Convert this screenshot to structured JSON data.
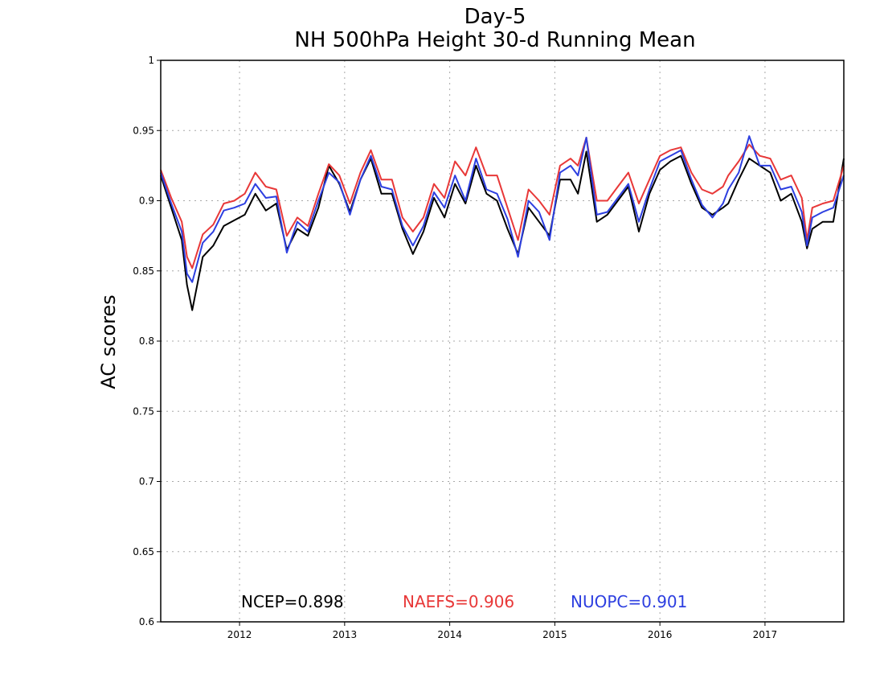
{
  "chart_data": {
    "type": "line",
    "title": "Day-5",
    "subtitle": "NH 500hPa Height 30-d Running Mean",
    "xlabel": "",
    "ylabel": "AC scores",
    "xlim": [
      2011.25,
      2017.75
    ],
    "ylim": [
      0.6,
      1.0
    ],
    "x_ticks": [
      2012,
      2013,
      2014,
      2015,
      2016,
      2017
    ],
    "x_tick_labels": [
      "2012",
      "2013",
      "2014",
      "2015",
      "2016",
      "2017"
    ],
    "y_ticks": [
      0.6,
      0.65,
      0.7,
      0.75,
      0.8,
      0.85,
      0.9,
      0.95,
      1.0
    ],
    "y_tick_labels": [
      "0.6",
      "0.65",
      "0.7",
      "0.75",
      "0.8",
      "0.85",
      "0.9",
      "0.95",
      "1"
    ],
    "grid": true,
    "legend_placement": "bottom",
    "x": [
      2011.25,
      2011.35,
      2011.45,
      2011.5,
      2011.55,
      2011.65,
      2011.75,
      2011.85,
      2011.95,
      2012.05,
      2012.15,
      2012.25,
      2012.35,
      2012.45,
      2012.55,
      2012.65,
      2012.75,
      2012.85,
      2012.95,
      2013.05,
      2013.15,
      2013.25,
      2013.35,
      2013.45,
      2013.55,
      2013.65,
      2013.75,
      2013.85,
      2013.95,
      2014.05,
      2014.15,
      2014.25,
      2014.35,
      2014.45,
      2014.55,
      2014.65,
      2014.75,
      2014.85,
      2014.95,
      2015.05,
      2015.15,
      2015.22,
      2015.3,
      2015.4,
      2015.5,
      2015.6,
      2015.7,
      2015.8,
      2015.9,
      2016.0,
      2016.1,
      2016.2,
      2016.3,
      2016.4,
      2016.5,
      2016.6,
      2016.65,
      2016.75,
      2016.85,
      2016.95,
      2017.05,
      2017.15,
      2017.25,
      2017.35,
      2017.4,
      2017.45,
      2017.55,
      2017.65,
      2017.75
    ],
    "series": [
      {
        "name": "NCEP",
        "color": "#000000",
        "values": [
          0.918,
          0.895,
          0.872,
          0.84,
          0.822,
          0.86,
          0.868,
          0.882,
          0.886,
          0.89,
          0.905,
          0.893,
          0.898,
          0.865,
          0.88,
          0.875,
          0.895,
          0.925,
          0.912,
          0.892,
          0.915,
          0.93,
          0.905,
          0.905,
          0.88,
          0.862,
          0.878,
          0.902,
          0.888,
          0.912,
          0.898,
          0.925,
          0.905,
          0.9,
          0.88,
          0.862,
          0.895,
          0.885,
          0.875,
          0.915,
          0.915,
          0.905,
          0.935,
          0.885,
          0.89,
          0.9,
          0.91,
          0.878,
          0.905,
          0.922,
          0.928,
          0.932,
          0.912,
          0.895,
          0.89,
          0.895,
          0.898,
          0.915,
          0.93,
          0.925,
          0.92,
          0.9,
          0.905,
          0.885,
          0.866,
          0.88,
          0.885,
          0.885,
          0.93
        ]
      },
      {
        "name": "NAEFS",
        "color": "#e83838",
        "values": [
          0.922,
          0.902,
          0.885,
          0.86,
          0.852,
          0.876,
          0.883,
          0.898,
          0.9,
          0.905,
          0.92,
          0.91,
          0.908,
          0.875,
          0.888,
          0.882,
          0.905,
          0.926,
          0.918,
          0.898,
          0.92,
          0.936,
          0.915,
          0.915,
          0.888,
          0.878,
          0.888,
          0.912,
          0.902,
          0.928,
          0.918,
          0.938,
          0.918,
          0.918,
          0.895,
          0.872,
          0.908,
          0.9,
          0.89,
          0.925,
          0.93,
          0.925,
          0.945,
          0.9,
          0.9,
          0.91,
          0.92,
          0.898,
          0.915,
          0.932,
          0.936,
          0.938,
          0.92,
          0.908,
          0.905,
          0.91,
          0.918,
          0.928,
          0.94,
          0.932,
          0.93,
          0.915,
          0.918,
          0.902,
          0.872,
          0.895,
          0.898,
          0.9,
          0.925
        ]
      },
      {
        "name": "NUOPC",
        "color": "#2d3fe0",
        "values": [
          0.92,
          0.898,
          0.878,
          0.848,
          0.842,
          0.87,
          0.878,
          0.893,
          0.895,
          0.898,
          0.912,
          0.902,
          0.903,
          0.863,
          0.885,
          0.878,
          0.9,
          0.92,
          0.913,
          0.89,
          0.915,
          0.932,
          0.91,
          0.908,
          0.882,
          0.868,
          0.882,
          0.906,
          0.895,
          0.918,
          0.9,
          0.93,
          0.908,
          0.905,
          0.887,
          0.86,
          0.9,
          0.892,
          0.872,
          0.92,
          0.925,
          0.918,
          0.945,
          0.89,
          0.892,
          0.902,
          0.912,
          0.885,
          0.908,
          0.928,
          0.932,
          0.936,
          0.915,
          0.897,
          0.888,
          0.898,
          0.908,
          0.92,
          0.946,
          0.925,
          0.925,
          0.908,
          0.91,
          0.892,
          0.868,
          0.888,
          0.892,
          0.895,
          0.918
        ]
      }
    ],
    "legend": [
      {
        "label": "NCEP=0.898",
        "color": "#000000"
      },
      {
        "label": "NAEFS=0.906",
        "color": "#e83838"
      },
      {
        "label": "NUOPC=0.901",
        "color": "#2d3fe0"
      }
    ]
  }
}
